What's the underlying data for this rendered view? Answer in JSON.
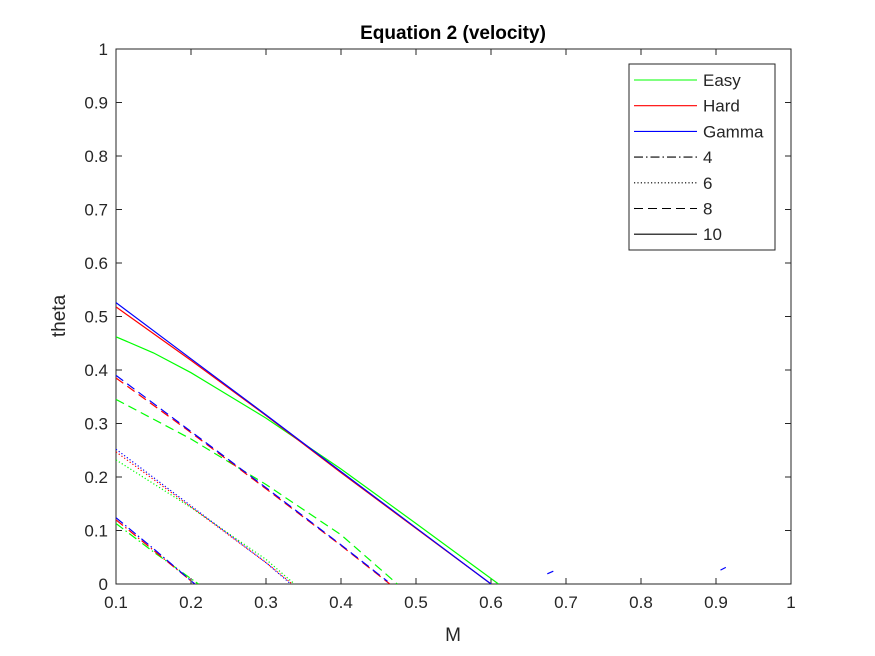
{
  "chart_data": {
    "type": "line",
    "title": "Equation 2 (velocity)",
    "xlabel": "M",
    "ylabel": "theta",
    "xlim": [
      0.1,
      1
    ],
    "ylim": [
      0,
      1
    ],
    "grid": false,
    "legend_position": "top-right",
    "xticks": [
      "0.1",
      "0.2",
      "0.3",
      "0.4",
      "0.5",
      "0.6",
      "0.7",
      "0.8",
      "0.9",
      "1"
    ],
    "yticks": [
      "0",
      "0.1",
      "0.2",
      "0.3",
      "0.4",
      "0.5",
      "0.6",
      "0.7",
      "0.8",
      "0.9",
      "1"
    ],
    "legend": [
      {
        "label": "Easy",
        "color": "#00ff00",
        "style": "solid"
      },
      {
        "label": "Hard",
        "color": "#ff0000",
        "style": "solid"
      },
      {
        "label": "Gamma",
        "color": "#0000ff",
        "style": "solid"
      },
      {
        "label": "4",
        "color": "#000000",
        "style": "dashdot"
      },
      {
        "label": "6",
        "color": "#000000",
        "style": "dotted"
      },
      {
        "label": "8",
        "color": "#000000",
        "style": "dashed"
      },
      {
        "label": "10",
        "color": "#000000",
        "style": "solid"
      }
    ],
    "series": [
      {
        "model": "Easy",
        "level": "10",
        "color": "#00ff00",
        "style": "solid",
        "x": [
          0.1,
          0.15,
          0.2,
          0.3,
          0.4,
          0.5,
          0.61
        ],
        "y": [
          0.462,
          0.432,
          0.395,
          0.31,
          0.215,
          0.113,
          0.0
        ]
      },
      {
        "model": "Hard",
        "level": "10",
        "color": "#ff0000",
        "style": "solid",
        "x": [
          0.1,
          0.2,
          0.3,
          0.4,
          0.5,
          0.6
        ],
        "y": [
          0.518,
          0.418,
          0.315,
          0.208,
          0.104,
          0.0
        ]
      },
      {
        "model": "Gamma",
        "level": "10",
        "color": "#0000ff",
        "style": "solid",
        "x": [
          0.1,
          0.2,
          0.3,
          0.4,
          0.5,
          0.6
        ],
        "y": [
          0.526,
          0.421,
          0.316,
          0.21,
          0.105,
          0.0
        ]
      },
      {
        "model": "Easy",
        "level": "8",
        "color": "#00ff00",
        "style": "dashed",
        "x": [
          0.1,
          0.2,
          0.3,
          0.4,
          0.475
        ],
        "y": [
          0.345,
          0.271,
          0.186,
          0.092,
          0.0
        ]
      },
      {
        "model": "Hard",
        "level": "8",
        "color": "#ff0000",
        "style": "dashed",
        "x": [
          0.1,
          0.2,
          0.3,
          0.4,
          0.465
        ],
        "y": [
          0.385,
          0.283,
          0.178,
          0.072,
          0.0
        ]
      },
      {
        "model": "Gamma",
        "level": "8",
        "color": "#0000ff",
        "style": "dashed",
        "x": [
          0.1,
          0.2,
          0.3,
          0.4,
          0.462
        ],
        "y": [
          0.39,
          0.285,
          0.18,
          0.073,
          0.005
        ]
      },
      {
        "model": "Easy",
        "level": "6",
        "color": "#00ff00",
        "style": "dotted",
        "x": [
          0.1,
          0.2,
          0.3,
          0.338
        ],
        "y": [
          0.232,
          0.143,
          0.046,
          0.0
        ]
      },
      {
        "model": "Hard",
        "level": "6",
        "color": "#ff0000",
        "style": "dotted",
        "x": [
          0.1,
          0.2,
          0.3,
          0.335
        ],
        "y": [
          0.247,
          0.144,
          0.04,
          0.0
        ]
      },
      {
        "model": "Gamma",
        "level": "6",
        "color": "#0000ff",
        "style": "dotted",
        "x": [
          0.1,
          0.2,
          0.3,
          0.333
        ],
        "y": [
          0.252,
          0.146,
          0.04,
          0.0
        ]
      },
      {
        "model": "Easy",
        "level": "4",
        "color": "#00ff00",
        "style": "dashdot",
        "x": [
          0.1,
          0.15,
          0.21
        ],
        "y": [
          0.113,
          0.06,
          0.0
        ]
      },
      {
        "model": "Hard",
        "level": "4",
        "color": "#ff0000",
        "style": "dashdot",
        "x": [
          0.1,
          0.15,
          0.205
        ],
        "y": [
          0.12,
          0.063,
          0.0
        ]
      },
      {
        "model": "Gamma",
        "level": "4",
        "color": "#0000ff",
        "style": "dashdot",
        "x": [
          0.1,
          0.15,
          0.205
        ],
        "y": [
          0.124,
          0.066,
          0.0
        ]
      },
      {
        "model": "Gamma",
        "level": "10",
        "color": "#0000ff",
        "style": "solid",
        "x": [
          0.675,
          0.683
        ],
        "y": [
          0.019,
          0.024
        ]
      },
      {
        "model": "Gamma",
        "level": "10",
        "color": "#0000ff",
        "style": "solid",
        "x": [
          0.906,
          0.913
        ],
        "y": [
          0.026,
          0.031
        ]
      }
    ]
  }
}
